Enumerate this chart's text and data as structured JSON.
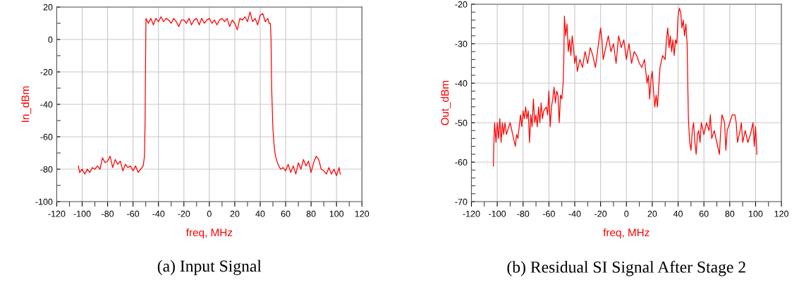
{
  "chart_data": [
    {
      "type": "line",
      "xlabel": "freq, MHz",
      "ylabel": "In_dBm",
      "annotations": [
        "(a) Input Signal"
      ],
      "grid": true,
      "line_style": "solid",
      "marker": "none",
      "xlim": [
        -120,
        120
      ],
      "ylim": [
        -100,
        20
      ],
      "xticks": [
        -120,
        {
          "value": -110,
          "label": null
        },
        -100,
        {
          "value": -90,
          "label": null
        },
        -80,
        {
          "value": -70,
          "label": null
        },
        -60,
        {
          "value": -50,
          "label": null
        },
        -40,
        {
          "value": -30,
          "label": null
        },
        -20,
        {
          "value": -10,
          "label": null
        },
        0,
        {
          "value": 10,
          "label": null
        },
        20,
        {
          "value": 30,
          "label": null
        },
        40,
        {
          "value": 50,
          "label": null
        },
        60,
        {
          "value": 70,
          "label": null
        },
        80,
        {
          "value": 90,
          "label": null
        },
        100,
        {
          "value": 110,
          "label": null
        },
        120
      ],
      "yticks": [
        -100,
        {
          "value": -90,
          "label": null
        },
        -80,
        {
          "value": -70,
          "label": null
        },
        -60,
        {
          "value": -50,
          "label": null
        },
        -40,
        {
          "value": -30,
          "label": null
        },
        -20,
        {
          "value": -10,
          "label": null
        },
        0,
        {
          "value": 10,
          "label": null
        },
        20
      ],
      "series": [
        {
          "color": "#ff0000",
          "x": [
            -103,
            -102,
            -100,
            -98,
            -96,
            -94,
            -92,
            -90,
            -88,
            -86,
            -84,
            -82,
            -80,
            -78,
            -76,
            -74,
            -72,
            -70,
            -68,
            -66,
            -64,
            -62,
            -60,
            -58,
            -56,
            -54,
            -52,
            -51,
            -50.5,
            -50,
            -49.8,
            -48,
            -46,
            -44,
            -42,
            -40,
            -38,
            -36,
            -34,
            -32,
            -30,
            -28,
            -26,
            -24,
            -22,
            -20,
            -18,
            -16,
            -14,
            -12,
            -10,
            -8,
            -6,
            -4,
            -2,
            0,
            2,
            4,
            6,
            8,
            10,
            12,
            14,
            16,
            18,
            20,
            22,
            24,
            26,
            28,
            30,
            32,
            34,
            36,
            38,
            40,
            42,
            44,
            46,
            47,
            48,
            48.5,
            49,
            50,
            51,
            52,
            54,
            56,
            58,
            60,
            62,
            64,
            66,
            68,
            70,
            72,
            74,
            76,
            78,
            80,
            82,
            84,
            86,
            88,
            90,
            92,
            94,
            96,
            98,
            100,
            102,
            103
          ],
          "values": [
            -78,
            -82,
            -80,
            -83,
            -80,
            -82,
            -79,
            -80,
            -78,
            -80,
            -73,
            -76,
            -75,
            -72,
            -79,
            -74,
            -77,
            -75,
            -81,
            -77,
            -79,
            -78,
            -81,
            -78,
            -82,
            -80,
            -78,
            -72,
            -50,
            0,
            13,
            10,
            13,
            9,
            13,
            11,
            14,
            11,
            13,
            12,
            10,
            13,
            11,
            8,
            12,
            12,
            10,
            13,
            9,
            12,
            13,
            9,
            13,
            10,
            12,
            13,
            10,
            12,
            9,
            12,
            13,
            11,
            13,
            8,
            12,
            10,
            6,
            13,
            12,
            14,
            11,
            17,
            11,
            13,
            9,
            15,
            16,
            11,
            13,
            10,
            10,
            0,
            -30,
            -55,
            -66,
            -72,
            -77,
            -80,
            -79,
            -81,
            -77,
            -82,
            -78,
            -83,
            -76,
            -80,
            -74,
            -78,
            -75,
            -82,
            -76,
            -72,
            -74,
            -80,
            -81,
            -83,
            -79,
            -83,
            -80,
            -84,
            -79,
            -83
          ]
        }
      ]
    },
    {
      "type": "line",
      "xlabel": "freq, MHz",
      "ylabel": "Out_dBm",
      "annotations": [
        "(b) Residual SI Signal After Stage 2"
      ],
      "grid": true,
      "line_style": "solid",
      "marker": "none",
      "xlim": [
        -120,
        120
      ],
      "ylim": [
        -70,
        -20
      ],
      "xticks": [
        -120,
        {
          "value": -110,
          "label": null
        },
        -100,
        {
          "value": -90,
          "label": null
        },
        -80,
        {
          "value": -70,
          "label": null
        },
        -60,
        {
          "value": -50,
          "label": null
        },
        -40,
        {
          "value": -30,
          "label": null
        },
        -20,
        {
          "value": -10,
          "label": null
        },
        0,
        {
          "value": 10,
          "label": null
        },
        20,
        {
          "value": 30,
          "label": null
        },
        40,
        {
          "value": 50,
          "label": null
        },
        60,
        {
          "value": 70,
          "label": null
        },
        80,
        {
          "value": 90,
          "label": null
        },
        100,
        {
          "value": 110,
          "label": null
        },
        120
      ],
      "yticks": [
        -70,
        {
          "value": -68,
          "label": null
        },
        {
          "value": -66,
          "label": null
        },
        {
          "value": -64,
          "label": null
        },
        {
          "value": -62,
          "label": null
        },
        -60,
        {
          "value": -58,
          "label": null
        },
        {
          "value": -56,
          "label": null
        },
        {
          "value": -54,
          "label": null
        },
        {
          "value": -52,
          "label": null
        },
        -50,
        {
          "value": -48,
          "label": null
        },
        {
          "value": -46,
          "label": null
        },
        {
          "value": -44,
          "label": null
        },
        {
          "value": -42,
          "label": null
        },
        -40,
        {
          "value": -38,
          "label": null
        },
        {
          "value": -36,
          "label": null
        },
        {
          "value": -34,
          "label": null
        },
        {
          "value": -32,
          "label": null
        },
        -30,
        {
          "value": -28,
          "label": null
        },
        {
          "value": -26,
          "label": null
        },
        {
          "value": -24,
          "label": null
        },
        {
          "value": -22,
          "label": null
        },
        -20
      ],
      "series": [
        {
          "color": "#ff0000",
          "x": [
            -103,
            -102.5,
            -102,
            -101,
            -100,
            -99,
            -98,
            -97,
            -96,
            -95,
            -94,
            -93,
            -92,
            -90,
            -88,
            -86,
            -85,
            -84,
            -82,
            -81,
            -80,
            -79,
            -78,
            -77,
            -76,
            -75,
            -74,
            -73,
            -72,
            -71,
            -70,
            -69,
            -68,
            -67,
            -66,
            -65,
            -64,
            -62,
            -61,
            -60,
            -59,
            -58,
            -57,
            -56,
            -55,
            -54,
            -53,
            -52,
            -51,
            -50,
            -49,
            -48.5,
            -48,
            -47,
            -46,
            -45,
            -44,
            -43,
            -42,
            -41,
            -40,
            -39,
            -38,
            -36,
            -34,
            -32,
            -30,
            -28,
            -26,
            -24,
            -22,
            -20,
            -19,
            -18,
            -16,
            -14,
            -12,
            -10,
            -8,
            -6,
            -4,
            -2,
            0,
            2,
            4,
            6,
            8,
            10,
            12,
            14,
            16,
            17,
            18,
            19,
            20,
            21,
            22,
            23,
            24,
            25,
            26,
            28,
            30,
            31,
            32,
            33,
            34,
            35,
            36,
            37,
            38,
            39,
            40,
            41,
            42,
            43,
            44,
            45,
            46,
            47,
            47.5,
            48,
            49,
            50,
            51,
            52,
            53,
            54,
            55,
            56,
            57,
            58,
            60,
            62,
            64,
            65,
            66,
            68,
            70,
            72,
            73,
            74,
            76,
            77,
            78,
            80,
            82,
            84,
            85,
            86,
            88,
            89,
            90,
            92,
            94,
            96,
            98,
            99,
            100,
            101
          ],
          "values": [
            -61,
            -54,
            -50,
            -55,
            -50,
            -54,
            -49,
            -55,
            -50,
            -53,
            -50,
            -53,
            -52,
            -50,
            -53,
            -56,
            -53,
            -54,
            -48,
            -51,
            -47,
            -49,
            -46,
            -49,
            -47,
            -55,
            -48,
            -51,
            -44,
            -50,
            -48,
            -51,
            -46,
            -50,
            -45,
            -49,
            -47,
            -46,
            -48,
            -42,
            -51,
            -46,
            -44,
            -41,
            -45,
            -42,
            -43,
            -50,
            -43,
            -44,
            -40,
            -35,
            -23,
            -28,
            -25,
            -32,
            -29,
            -33,
            -28,
            -31,
            -35,
            -33,
            -37,
            -34,
            -36,
            -32,
            -35,
            -31,
            -33,
            -36,
            -31,
            -26,
            -29,
            -34,
            -31,
            -28,
            -32,
            -30,
            -35,
            -28,
            -31,
            -29,
            -34,
            -30,
            -35,
            -32,
            -33,
            -35,
            -36,
            -34,
            -40,
            -38,
            -44,
            -39,
            -37,
            -42,
            -46,
            -43,
            -46,
            -41,
            -36,
            -33,
            -34,
            -29,
            -26,
            -31,
            -28,
            -32,
            -29,
            -33,
            -29,
            -30,
            -23,
            -21,
            -22,
            -26,
            -24,
            -28,
            -25,
            -30,
            -40,
            -49,
            -55,
            -57,
            -52,
            -50,
            -55,
            -58,
            -53,
            -52,
            -55,
            -50,
            -53,
            -50,
            -52,
            -48,
            -54,
            -52,
            -55,
            -58,
            -52,
            -48,
            -50,
            -57,
            -52,
            -50,
            -48,
            -48,
            -50,
            -55,
            -52,
            -50,
            -55,
            -52,
            -55,
            -53,
            -50,
            -56,
            -51,
            -58
          ]
        }
      ]
    }
  ]
}
